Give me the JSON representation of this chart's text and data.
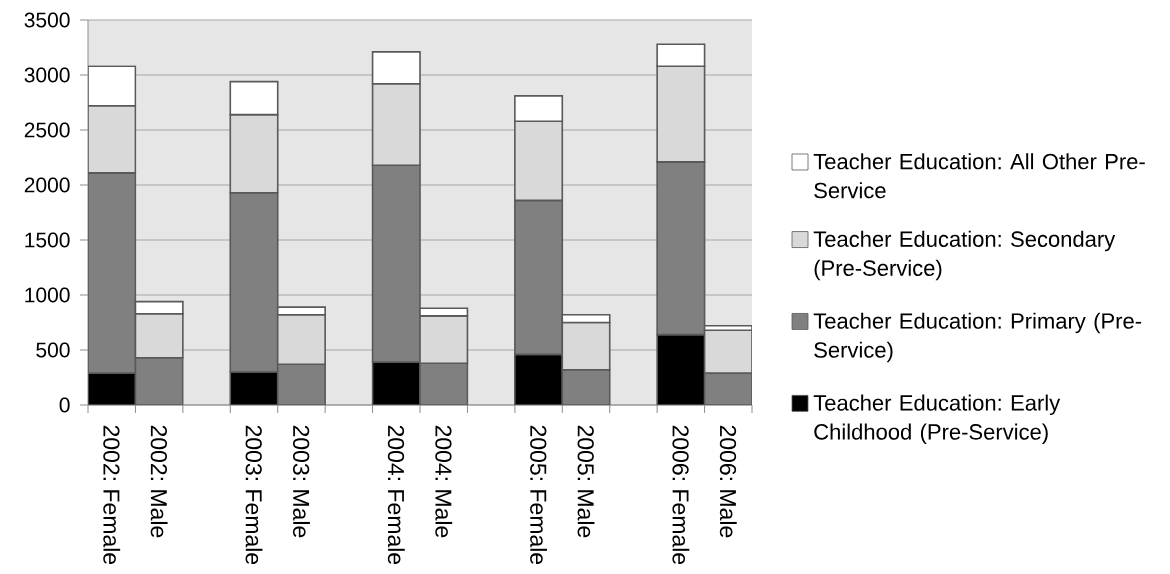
{
  "chart_data": {
    "type": "bar",
    "stacked": true,
    "categories": [
      "2002: Female",
      "2002: Male",
      null,
      "2003: Female",
      "2003: Male",
      null,
      "2004: Female",
      "2004: Male",
      null,
      "2005: Female",
      "2005: Male",
      null,
      "2006: Female",
      "2006: Male"
    ],
    "series": [
      {
        "name": "Teacher Education: Early Childhood (Pre-Service)",
        "color": "#000000",
        "values": [
          290,
          null,
          null,
          300,
          null,
          null,
          390,
          null,
          null,
          460,
          null,
          null,
          640,
          null
        ]
      },
      {
        "name": "Teacher Education: Primary (Pre-Service)",
        "color": "#808080",
        "values": [
          1820,
          430,
          null,
          1630,
          370,
          null,
          1790,
          380,
          null,
          1400,
          320,
          null,
          1570,
          290
        ]
      },
      {
        "name": "Teacher Education: Secondary (Pre-Service)",
        "color": "#d9d9d9",
        "values": [
          610,
          400,
          null,
          710,
          450,
          null,
          740,
          430,
          null,
          720,
          430,
          null,
          870,
          390
        ]
      },
      {
        "name": "Teacher Education: All Other Pre-Service",
        "color": "#ffffff",
        "values": [
          360,
          110,
          null,
          300,
          70,
          null,
          290,
          70,
          null,
          230,
          70,
          null,
          200,
          40
        ]
      }
    ],
    "ylim": [
      0,
      3500
    ],
    "yticks": [
      0,
      500,
      1000,
      1500,
      2000,
      2500,
      3000,
      3500
    ],
    "grid": "y",
    "legend": "right"
  }
}
